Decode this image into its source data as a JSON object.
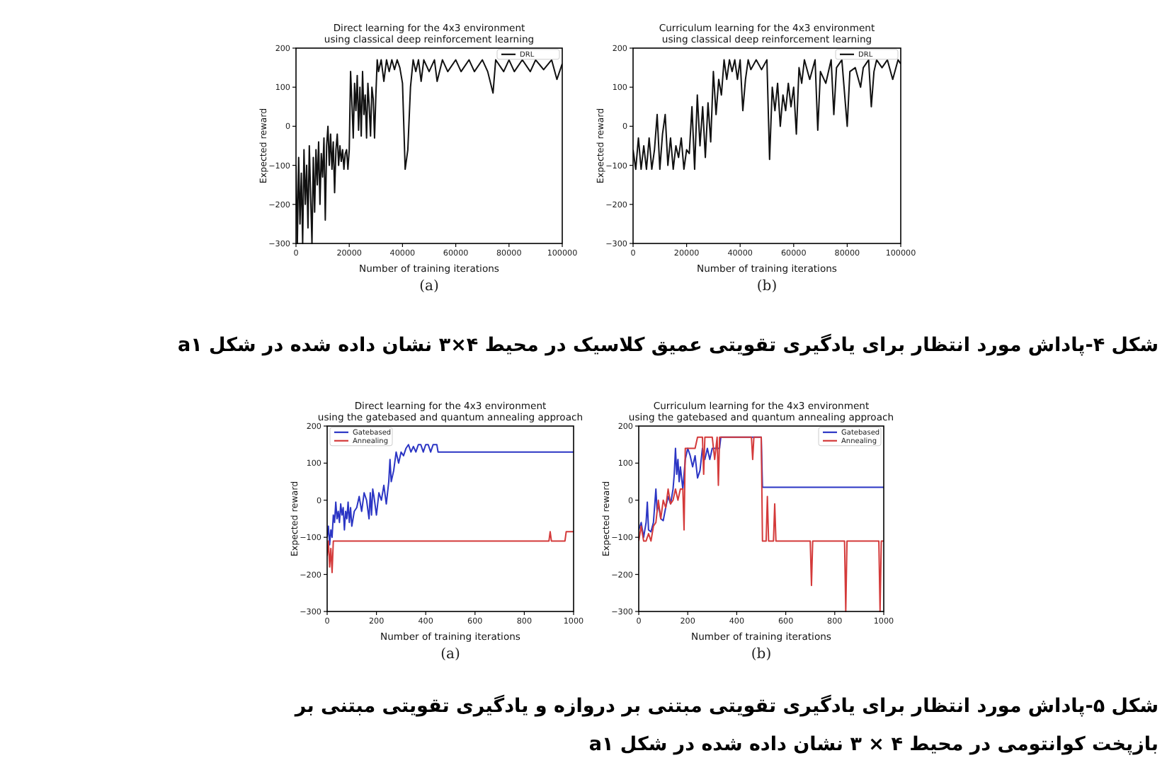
{
  "chart_data": [
    {
      "type": "line",
      "title": "Direct learning for the 4x3 environment\nusing classical deep reinforcement learning",
      "xlabel": "Number of training iterations",
      "ylabel": "Expected reward",
      "xlim": [
        0,
        100000
      ],
      "ylim": [
        -300,
        200
      ],
      "xticks": [
        0,
        20000,
        40000,
        60000,
        80000,
        100000
      ],
      "yticks": [
        -300,
        -200,
        -100,
        0,
        100,
        200
      ],
      "legend": "top right",
      "grid": false,
      "marker": "none",
      "line_style": "solid",
      "annotations": [
        "(a)",
        "شکل ۴-پاداش مورد انتظار برای یادگیری تقویتی عمیق کلاسیک در محیط ۴×۳ نشان داده شده در شکل a۱"
      ],
      "series": [
        {
          "name": "DRL",
          "color": "#111111",
          "x": [
            0,
            500,
            1000,
            1500,
            2000,
            2500,
            3000,
            3500,
            4000,
            4500,
            5000,
            5500,
            6000,
            6500,
            7000,
            7500,
            8000,
            8500,
            9000,
            9500,
            10000,
            10500,
            11000,
            11500,
            12000,
            12500,
            13000,
            13500,
            14000,
            14500,
            15000,
            15500,
            16000,
            16500,
            17000,
            17500,
            18000,
            18500,
            19000,
            19500,
            20000,
            20500,
            21000,
            21500,
            22000,
            22500,
            23000,
            23500,
            24000,
            24500,
            25000,
            25500,
            26000,
            26500,
            27000,
            27500,
            28000,
            28500,
            29000,
            29500,
            30000,
            30500,
            31000,
            32000,
            33000,
            34000,
            35000,
            36000,
            37000,
            38000,
            39000,
            40000,
            41000,
            42000,
            43000,
            44000,
            45000,
            46000,
            47000,
            48000,
            50000,
            52000,
            53000,
            55000,
            57000,
            60000,
            62000,
            65000,
            67000,
            70000,
            72000,
            74000,
            75000,
            78000,
            80000,
            82000,
            85000,
            88000,
            90000,
            93000,
            96000,
            98000,
            100000
          ],
          "values": [
            -100,
            -300,
            -80,
            -250,
            -120,
            -300,
            -60,
            -200,
            -100,
            -260,
            -50,
            -180,
            -300,
            -80,
            -220,
            -60,
            -150,
            -40,
            -200,
            -70,
            -130,
            -30,
            -240,
            -50,
            0,
            -100,
            -20,
            -110,
            -40,
            -170,
            -60,
            -20,
            -100,
            -50,
            -90,
            -60,
            -110,
            -70,
            -60,
            -110,
            -60,
            140,
            60,
            -30,
            110,
            40,
            130,
            -10,
            100,
            -25,
            140,
            30,
            80,
            -30,
            110,
            50,
            -25,
            100,
            70,
            -30,
            80,
            170,
            140,
            170,
            115,
            170,
            140,
            170,
            145,
            170,
            150,
            110,
            -110,
            -60,
            100,
            170,
            140,
            170,
            115,
            170,
            140,
            170,
            115,
            170,
            140,
            170,
            140,
            170,
            140,
            170,
            140,
            85,
            170,
            140,
            170,
            140,
            170,
            140,
            170,
            145,
            170,
            120,
            160
          ]
        }
      ]
    },
    {
      "type": "line",
      "title": "Curriculum learning for the 4x3 environment\nusing classical deep reinforcement learning",
      "xlabel": "Number of training iterations",
      "ylabel": "Expected reward",
      "xlim": [
        0,
        100000
      ],
      "ylim": [
        -300,
        200
      ],
      "xticks": [
        0,
        20000,
        40000,
        60000,
        80000,
        100000
      ],
      "yticks": [
        -300,
        -200,
        -100,
        0,
        100,
        200
      ],
      "legend": "top right",
      "grid": false,
      "marker": "none",
      "line_style": "solid",
      "annotations": [
        "(b)"
      ],
      "series": [
        {
          "name": "DRL",
          "color": "#111111",
          "x": [
            0,
            1000,
            2000,
            3000,
            4000,
            5000,
            6000,
            7000,
            8000,
            9000,
            10000,
            11000,
            12000,
            13000,
            14000,
            15000,
            16000,
            17000,
            18000,
            19000,
            20000,
            21000,
            22000,
            23000,
            24000,
            25000,
            26000,
            27000,
            28000,
            29000,
            30000,
            31000,
            32000,
            33000,
            34000,
            35000,
            36000,
            37000,
            38000,
            39000,
            40000,
            41000,
            42000,
            43000,
            44000,
            46000,
            48000,
            50000,
            51000,
            52000,
            53000,
            54000,
            55000,
            56000,
            57000,
            58000,
            59000,
            60000,
            61000,
            62000,
            63000,
            64000,
            66000,
            68000,
            69000,
            70000,
            72000,
            74000,
            75000,
            76000,
            78000,
            80000,
            81000,
            83000,
            85000,
            86000,
            88000,
            89000,
            90000,
            91000,
            93000,
            95000,
            97000,
            99000,
            100000
          ],
          "values": [
            -60,
            -110,
            -30,
            -110,
            -50,
            -110,
            -30,
            -110,
            -60,
            30,
            -110,
            -20,
            30,
            -100,
            -30,
            -110,
            -50,
            -80,
            -30,
            -110,
            -60,
            -70,
            50,
            -110,
            80,
            -50,
            50,
            -80,
            60,
            -40,
            140,
            30,
            120,
            80,
            170,
            120,
            170,
            140,
            170,
            120,
            170,
            40,
            120,
            170,
            145,
            170,
            145,
            170,
            -85,
            100,
            40,
            110,
            0,
            80,
            40,
            110,
            50,
            100,
            -20,
            150,
            110,
            170,
            120,
            170,
            -10,
            140,
            110,
            170,
            30,
            150,
            170,
            0,
            140,
            150,
            100,
            150,
            170,
            50,
            140,
            170,
            150,
            170,
            120,
            170,
            160
          ]
        }
      ]
    },
    {
      "type": "line",
      "title": "Direct learning for the 4x3 environment\nusing the gatebased and quantum annealing approach",
      "xlabel": "Number of training iterations",
      "ylabel": "Expected reward",
      "xlim": [
        0,
        1000
      ],
      "ylim": [
        -300,
        200
      ],
      "xticks": [
        0,
        200,
        400,
        600,
        800,
        1000
      ],
      "yticks": [
        -300,
        -200,
        -100,
        0,
        100,
        200
      ],
      "legend": "top left",
      "grid": false,
      "marker": "none",
      "line_style": "solid",
      "annotations": [
        "(a)",
        "شکل ۵-پاداش مورد انتظار برای یادگیری تقویتی مبتنی بر دروازه و یادگیری تقویتی مبتنی بر بازپخت کوانتومی در محیط ۴ × ۳ نشان داده شده در شکل a۱"
      ],
      "series": [
        {
          "name": "Gatebased",
          "color": "#2b35c4",
          "x": [
            0,
            5,
            10,
            15,
            20,
            25,
            30,
            35,
            40,
            45,
            50,
            55,
            60,
            65,
            70,
            75,
            80,
            85,
            90,
            95,
            100,
            110,
            120,
            130,
            140,
            150,
            160,
            170,
            175,
            180,
            185,
            190,
            200,
            210,
            220,
            230,
            240,
            250,
            255,
            260,
            270,
            280,
            290,
            300,
            310,
            320,
            330,
            340,
            350,
            360,
            370,
            380,
            390,
            400,
            410,
            420,
            430,
            445,
            450,
            1000
          ],
          "values": [
            -100,
            -70,
            -120,
            -80,
            -100,
            -40,
            -60,
            -5,
            -50,
            -30,
            -60,
            -10,
            -40,
            -20,
            -80,
            -30,
            -50,
            -5,
            -60,
            -20,
            -70,
            -30,
            -20,
            10,
            -30,
            20,
            0,
            -50,
            20,
            -40,
            30,
            10,
            -40,
            20,
            0,
            40,
            -10,
            50,
            110,
            50,
            80,
            130,
            100,
            130,
            120,
            140,
            150,
            130,
            145,
            130,
            150,
            150,
            130,
            150,
            150,
            130,
            150,
            150,
            130,
            130
          ]
        },
        {
          "name": "Annealing",
          "color": "#d43a3a",
          "x": [
            0,
            5,
            10,
            15,
            20,
            25,
            900,
            905,
            910,
            965,
            970,
            1000
          ],
          "values": [
            -150,
            -110,
            -180,
            -130,
            -195,
            -110,
            -110,
            -85,
            -110,
            -110,
            -85,
            -85
          ]
        }
      ]
    },
    {
      "type": "line",
      "title": "Curriculum learning for the 4x3 environment\nusing the gatebased and quantum annealing approach",
      "xlabel": "Number of training iterations",
      "ylabel": "Expected reward",
      "xlim": [
        0,
        1000
      ],
      "ylim": [
        -300,
        200
      ],
      "xticks": [
        0,
        200,
        400,
        600,
        800,
        1000
      ],
      "yticks": [
        -300,
        -200,
        -100,
        0,
        100,
        200
      ],
      "legend": "top right",
      "grid": false,
      "marker": "none",
      "line_style": "solid",
      "annotations": [
        "(b)"
      ],
      "series": [
        {
          "name": "Gatebased",
          "color": "#2b35c4",
          "x": [
            0,
            10,
            20,
            30,
            35,
            40,
            50,
            60,
            70,
            75,
            80,
            90,
            100,
            110,
            120,
            130,
            140,
            145,
            150,
            155,
            160,
            165,
            170,
            175,
            180,
            190,
            200,
            210,
            220,
            230,
            240,
            250,
            260,
            270,
            280,
            290,
            300,
            330,
            335,
            500,
            505,
            1000
          ],
          "values": [
            -80,
            -60,
            -100,
            -60,
            -5,
            -80,
            -85,
            -60,
            30,
            -30,
            -10,
            -50,
            -55,
            -20,
            10,
            -10,
            30,
            70,
            140,
            70,
            110,
            50,
            90,
            60,
            30,
            110,
            140,
            120,
            90,
            120,
            60,
            80,
            140,
            110,
            140,
            110,
            140,
            140,
            170,
            170,
            35,
            35
          ]
        },
        {
          "name": "Annealing",
          "color": "#d43a3a",
          "x": [
            0,
            10,
            20,
            30,
            40,
            50,
            60,
            70,
            80,
            90,
            100,
            110,
            120,
            130,
            140,
            150,
            160,
            170,
            180,
            185,
            190,
            200,
            230,
            240,
            260,
            265,
            270,
            300,
            310,
            320,
            325,
            330,
            460,
            465,
            470,
            500,
            505,
            520,
            525,
            530,
            550,
            555,
            560,
            700,
            705,
            710,
            840,
            845,
            850,
            980,
            985,
            990,
            1000
          ],
          "values": [
            -110,
            -70,
            -110,
            -110,
            -90,
            -110,
            -70,
            -60,
            0,
            -50,
            0,
            -20,
            30,
            -10,
            0,
            30,
            0,
            30,
            30,
            -80,
            140,
            140,
            140,
            170,
            170,
            70,
            170,
            170,
            110,
            170,
            40,
            170,
            170,
            110,
            170,
            170,
            -110,
            -110,
            10,
            -110,
            -110,
            -10,
            -110,
            -110,
            -230,
            -110,
            -110,
            -300,
            -110,
            -110,
            -300,
            -110,
            -110
          ]
        }
      ]
    }
  ]
}
